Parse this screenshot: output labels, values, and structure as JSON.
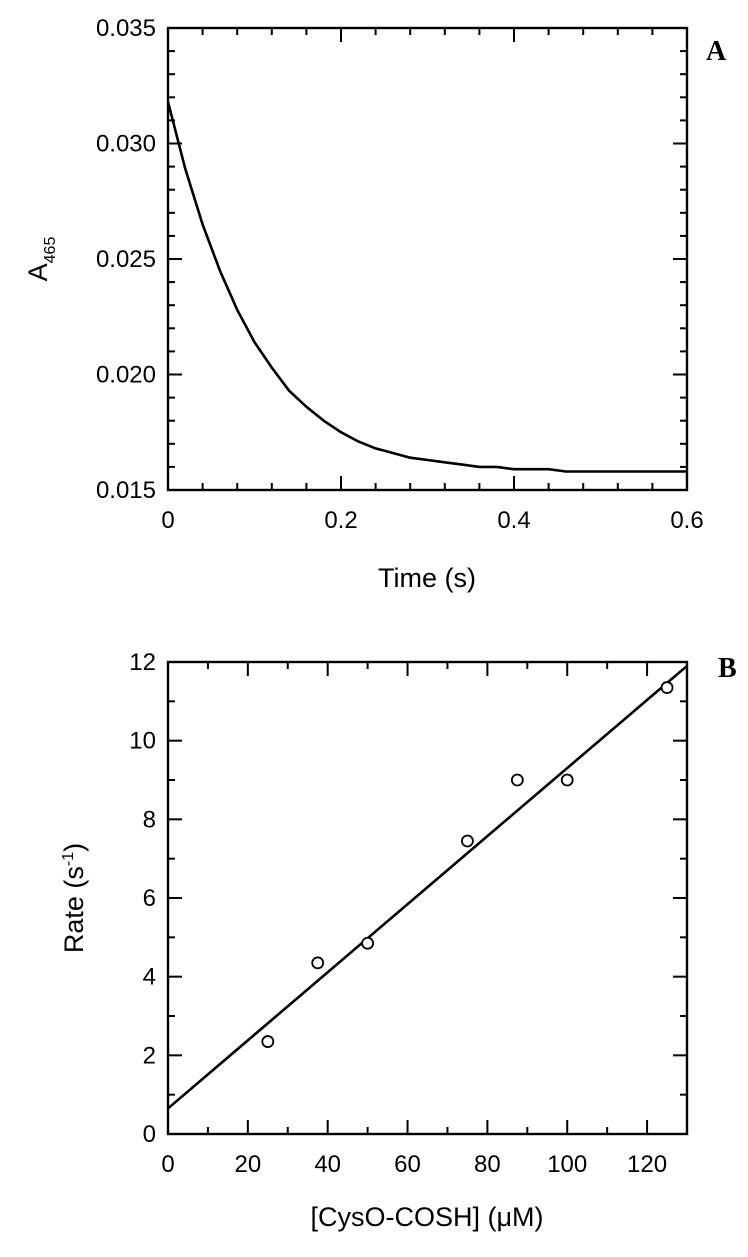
{
  "chart_data": [
    {
      "panel": "A",
      "type": "line",
      "xlabel": "Time (s)",
      "ylabel_main": "A",
      "ylabel_sub": "465",
      "xlim": [
        0,
        0.6
      ],
      "ylim": [
        0.015,
        0.035
      ],
      "xticks": [
        0,
        0.2,
        0.4,
        0.6
      ],
      "xtick_labels": [
        "0",
        "0.2",
        "0.4",
        "0.6"
      ],
      "yticks": [
        0.015,
        0.02,
        0.025,
        0.03,
        0.035
      ],
      "ytick_labels": [
        "0.015",
        "0.020",
        "0.025",
        "0.030",
        "0.035"
      ],
      "grid": false,
      "series": [
        {
          "x": [
            0,
            0.02,
            0.04,
            0.06,
            0.08,
            0.1,
            0.12,
            0.14,
            0.16,
            0.18,
            0.2,
            0.22,
            0.24,
            0.26,
            0.28,
            0.3,
            0.32,
            0.34,
            0.36,
            0.38,
            0.4,
            0.42,
            0.44,
            0.46,
            0.48,
            0.5,
            0.52,
            0.54,
            0.56,
            0.58,
            0.6
          ],
          "y": [
            0.0318,
            0.0289,
            0.0265,
            0.0245,
            0.0228,
            0.0214,
            0.0203,
            0.0193,
            0.0186,
            0.018,
            0.0175,
            0.0171,
            0.0168,
            0.0166,
            0.0164,
            0.0163,
            0.0162,
            0.0161,
            0.016,
            0.016,
            0.0159,
            0.0159,
            0.0159,
            0.0158,
            0.0158,
            0.0158,
            0.0158,
            0.0158,
            0.0158,
            0.0158,
            0.0158
          ]
        }
      ]
    },
    {
      "panel": "B",
      "type": "scatter",
      "xlabel": "[CysO-COSH] (μM)",
      "ylabel_main": "Rate (s",
      "ylabel_sup": "-1",
      "ylabel_end": ")",
      "xlim": [
        0,
        130
      ],
      "ylim": [
        0,
        12
      ],
      "xticks": [
        0,
        20,
        40,
        60,
        80,
        100,
        120
      ],
      "xtick_labels": [
        "0",
        "20",
        "40",
        "60",
        "80",
        "100",
        "120"
      ],
      "yticks": [
        0,
        2,
        4,
        6,
        8,
        10,
        12
      ],
      "ytick_labels": [
        "0",
        "2",
        "4",
        "6",
        "8",
        "10",
        "12"
      ],
      "grid": false,
      "points": {
        "x": [
          25,
          37.5,
          50,
          75,
          87.5,
          100,
          125
        ],
        "y": [
          2.35,
          4.35,
          4.85,
          7.45,
          9.0,
          9.0,
          11.35
        ]
      },
      "fit_line": {
        "x": [
          0,
          130
        ],
        "y": [
          0.65,
          11.9
        ]
      }
    }
  ]
}
